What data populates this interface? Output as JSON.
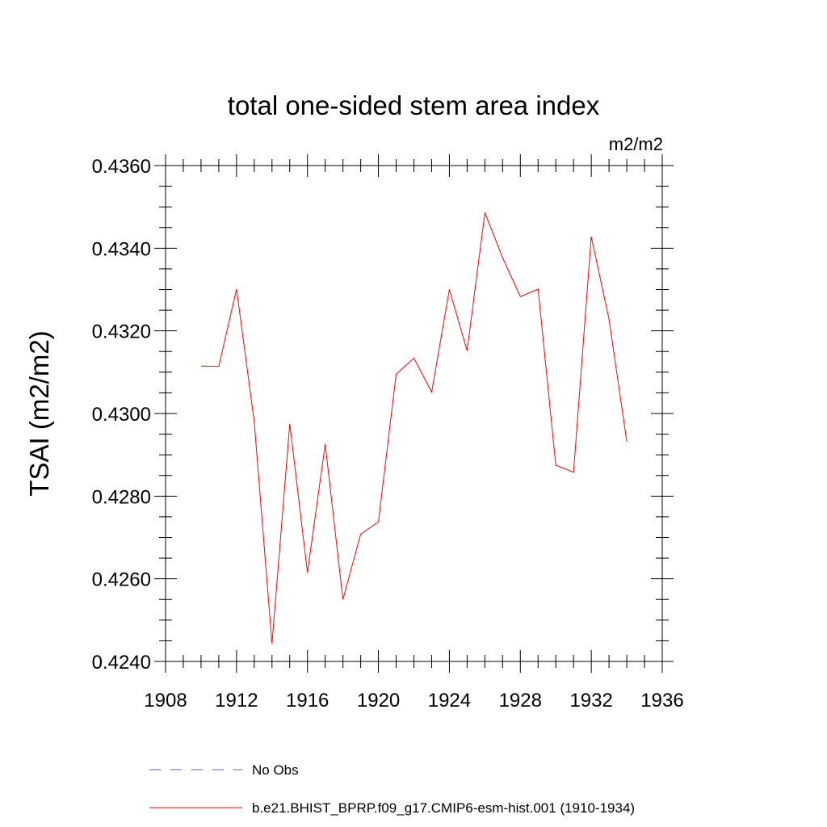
{
  "chart_data": {
    "type": "line",
    "title": "total one-sided stem area index",
    "units": "m2/m2",
    "ylabel": "TSAI  (m2/m2)",
    "xlabel": "",
    "xlim": [
      1908,
      1936
    ],
    "ylim": [
      0.424,
      0.436
    ],
    "x_ticks": [
      1908,
      1912,
      1916,
      1920,
      1924,
      1928,
      1932,
      1936
    ],
    "x_tick_labels": [
      "1908",
      "1912",
      "1916",
      "1920",
      "1924",
      "1928",
      "1932",
      "1936"
    ],
    "y_ticks": [
      0.424,
      0.426,
      0.428,
      0.43,
      0.432,
      0.434,
      0.436
    ],
    "y_tick_labels": [
      "0.4240",
      "0.4260",
      "0.4280",
      "0.4300",
      "0.4320",
      "0.4340",
      "0.4360"
    ],
    "grid": false,
    "legend_position": "bottom",
    "legend": [
      {
        "label": "No Obs",
        "color": "#6a5acd",
        "style": "dashed"
      },
      {
        "label": "b.e21.BHIST_BPRP.f09_g17.CMIP6-esm-hist.001 (1910-1934)",
        "color": "#ff0000",
        "style": "solid"
      }
    ],
    "series": [
      {
        "name": "b.e21.BHIST_BPRP.f09_g17.CMIP6-esm-hist.001 (1910-1934)",
        "color": "#ff0000",
        "x": [
          1910,
          1911,
          1912,
          1913,
          1914,
          1915,
          1916,
          1917,
          1918,
          1919,
          1920,
          1921,
          1922,
          1923,
          1924,
          1925,
          1926,
          1927,
          1928,
          1929,
          1930,
          1931,
          1932,
          1933,
          1934
        ],
        "y": [
          0.43115,
          0.43114,
          0.43301,
          0.4298,
          0.42443,
          0.42975,
          0.42615,
          0.42926,
          0.4255,
          0.42708,
          0.42738,
          0.43095,
          0.43134,
          0.43052,
          0.433,
          0.43152,
          0.43486,
          0.43377,
          0.43283,
          0.43301,
          0.42875,
          0.42858,
          0.43428,
          0.43228,
          0.42932
        ]
      }
    ]
  }
}
